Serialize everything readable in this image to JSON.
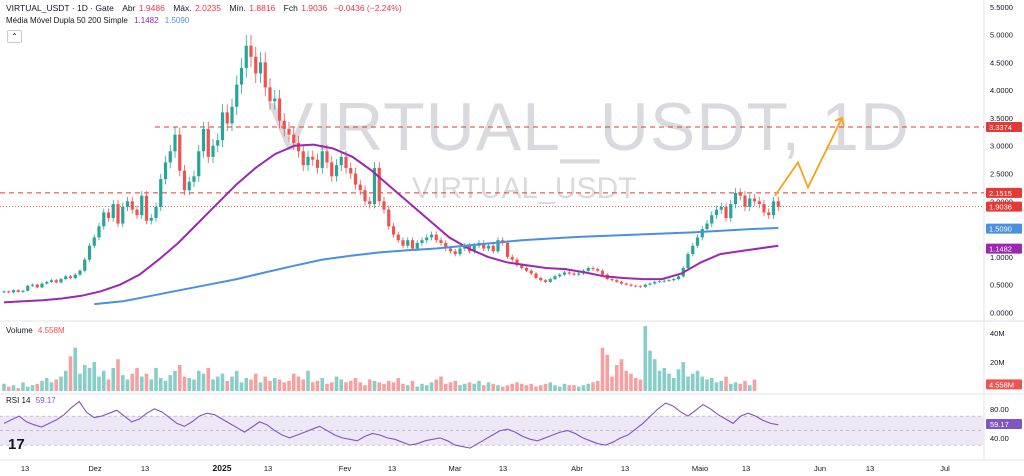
{
  "header": {
    "symbol": "VIRTUAL_USDT · 1D · Gate",
    "open_label": "Abr",
    "open_value": "1.9486",
    "high_label": "Máx.",
    "high_value": "2.0235",
    "low_label": "Mín.",
    "low_value": "1.8816",
    "close_label": "Fch",
    "close_value": "1.9036",
    "change": "−0.0436 (−2.24%)"
  },
  "indicator": {
    "name": "Média Móvel Dupla 50 200 Simple",
    "ma50": "1.1482",
    "ma200": "1.5090"
  },
  "toggle_icon": "chevron-up-icon",
  "watermark": {
    "big": "VIRTUAL_USDT, 1D",
    "small": "VIRTUAL_USDT"
  },
  "volume": {
    "label": "Volume",
    "value": "4.558M"
  },
  "rsi": {
    "label": "RSI 14",
    "value": "59.17"
  },
  "colors": {
    "up": "#26a69a",
    "down": "#ef5350",
    "ma50": "#9c27b0",
    "ma200": "#4a90e2",
    "projection": "#f7a21b",
    "level": "#e53935",
    "rsi_band": "#ede7f6"
  },
  "chart_data": [
    {
      "type": "candlestick",
      "title": "VIRTUAL_USDT · 1D · Gate",
      "x_ticks": [
        "13",
        "Dez",
        "13",
        "2025",
        "13",
        "Fev",
        "13",
        "Mar",
        "13",
        "Abr",
        "13",
        "Maio",
        "13",
        "Jun",
        "13",
        "Jul"
      ],
      "y_ticks": [
        "5.5000",
        "5.0000",
        "4.5000",
        "4.0000",
        "3.5000",
        "3.0000",
        "2.5000",
        "2.0000",
        "1.5000",
        "1.0000",
        "0.5000",
        "0.0000"
      ],
      "ylim": [
        -0.1,
        5.55
      ],
      "price_labels": [
        {
          "value": 3.3374,
          "text": "3.3374",
          "color": "#e53935"
        },
        {
          "value": 2.1515,
          "text": "2.1515",
          "color": "#e53935"
        },
        {
          "value": 1.9036,
          "text": "1.9036",
          "color": "#e53935"
        },
        {
          "value": 1.509,
          "text": "1.5090",
          "color": "#4a90e2"
        },
        {
          "value": 1.1482,
          "text": "1.1482",
          "color": "#9c27b0"
        }
      ],
      "horizontal_levels": [
        3.3374,
        2.1515
      ],
      "closes": [
        0.38,
        0.36,
        0.4,
        0.37,
        0.39,
        0.48,
        0.5,
        0.45,
        0.52,
        0.55,
        0.58,
        0.54,
        0.6,
        0.65,
        0.62,
        0.68,
        0.75,
        0.95,
        1.2,
        1.35,
        1.55,
        1.8,
        1.7,
        1.95,
        1.6,
        1.9,
        2.0,
        1.85,
        1.75,
        2.1,
        1.65,
        1.7,
        1.9,
        2.4,
        2.7,
        2.9,
        3.2,
        2.55,
        2.2,
        2.35,
        2.45,
        2.9,
        3.3,
        2.8,
        3.0,
        3.1,
        3.6,
        3.4,
        3.7,
        4.1,
        4.4,
        4.8,
        4.6,
        4.3,
        4.5,
        4.05,
        3.8,
        3.85,
        3.45,
        3.3,
        3.2,
        3.05,
        2.9,
        2.65,
        2.8,
        2.75,
        2.6,
        2.9,
        2.7,
        2.45,
        2.65,
        2.8,
        2.6,
        2.5,
        2.3,
        2.2,
        2.0,
        1.95,
        2.6,
        2.0,
        1.85,
        1.55,
        1.4,
        1.3,
        1.2,
        1.3,
        1.15,
        1.25,
        1.3,
        1.35,
        1.4,
        1.3,
        1.25,
        1.15,
        1.1,
        1.05,
        1.15,
        1.2,
        1.1,
        1.2,
        1.25,
        1.15,
        1.2,
        1.1,
        1.3,
        1.25,
        1.0,
        0.95,
        0.85,
        0.8,
        0.75,
        0.7,
        0.62,
        0.58,
        0.55,
        0.6,
        0.65,
        0.68,
        0.72,
        0.7,
        0.68,
        0.7,
        0.75,
        0.8,
        0.78,
        0.75,
        0.68,
        0.6,
        0.58,
        0.55,
        0.52,
        0.5,
        0.48,
        0.47,
        0.46,
        0.5,
        0.52,
        0.55,
        0.56,
        0.57,
        0.58,
        0.6,
        0.65,
        0.8,
        1.05,
        1.2,
        1.35,
        1.5,
        1.6,
        1.75,
        1.85,
        1.9,
        1.7,
        1.95,
        2.15,
        2.1,
        1.9,
        2.05,
        2.0,
        1.95,
        1.8,
        1.75,
        2.0,
        1.9
      ],
      "series": [
        {
          "name": "MA 50",
          "values": [
            0.18,
            0.2,
            0.22,
            0.25,
            0.3,
            0.38,
            0.5,
            0.68,
            0.95,
            1.25,
            1.6,
            1.95,
            2.3,
            2.6,
            2.85,
            3.0,
            3.02,
            2.95,
            2.8,
            2.55,
            2.25,
            1.95,
            1.65,
            1.35,
            1.15,
            1.0,
            0.9,
            0.85,
            0.8,
            0.78,
            0.72,
            0.65,
            0.62,
            0.6,
            0.6,
            0.7,
            0.9,
            1.05,
            1.1,
            1.15,
            1.2
          ]
        },
        {
          "name": "MA 200",
          "values": [
            0.15,
            0.2,
            0.3,
            0.4,
            0.5,
            0.6,
            0.72,
            0.84,
            0.95,
            1.02,
            1.08,
            1.12,
            1.15,
            1.2,
            1.25,
            1.3,
            1.33,
            1.36,
            1.38,
            1.4,
            1.42,
            1.44,
            1.47,
            1.5,
            1.52
          ]
        }
      ],
      "projection": [
        2.1,
        2.7,
        2.25,
        3.5
      ]
    },
    {
      "type": "bar",
      "title": "Volume",
      "y_ticks": [
        "40M",
        "20M"
      ],
      "ylim": [
        0,
        45
      ],
      "values": [
        5,
        3,
        4,
        2,
        6,
        3,
        4,
        5,
        7,
        9,
        6,
        8,
        10,
        14,
        24,
        30,
        12,
        18,
        16,
        20,
        10,
        14,
        8,
        16,
        22,
        11,
        8,
        12,
        16,
        10,
        12,
        8,
        16,
        9,
        7,
        11,
        14,
        18,
        10,
        9,
        8,
        14,
        12,
        16,
        8,
        10,
        12,
        7,
        10,
        14,
        6,
        9,
        8,
        12,
        6,
        10,
        7,
        9,
        8,
        6,
        7,
        12,
        10,
        8,
        14,
        6,
        7,
        9,
        5,
        6,
        10,
        8,
        6,
        7,
        9,
        6,
        4,
        8,
        7,
        6,
        5,
        7,
        6,
        9,
        5,
        4,
        7,
        3,
        5,
        4,
        6,
        8,
        10,
        5,
        6,
        7,
        4,
        5,
        6,
        5,
        7,
        4,
        6,
        5,
        4,
        3,
        4,
        5,
        6,
        5,
        4,
        5,
        3,
        4,
        5,
        6,
        4,
        3,
        5,
        4,
        4,
        3,
        4,
        5,
        6,
        7,
        30,
        25,
        10,
        18,
        22,
        14,
        12,
        9,
        8,
        45,
        28,
        22,
        14,
        16,
        12,
        9,
        15,
        20,
        10,
        12,
        14,
        10,
        8,
        9,
        6,
        7,
        10,
        5,
        6,
        5,
        7,
        4,
        8
      ]
    },
    {
      "type": "line",
      "title": "RSI 14",
      "y_ticks": [
        "80.00",
        "40.00"
      ],
      "ylim": [
        15,
        95
      ],
      "values": [
        60,
        65,
        70,
        62,
        58,
        55,
        60,
        65,
        72,
        82,
        90,
        75,
        68,
        70,
        74,
        78,
        70,
        62,
        66,
        74,
        80,
        76,
        68,
        60,
        56,
        62,
        70,
        74,
        72,
        66,
        60,
        54,
        48,
        55,
        62,
        58,
        50,
        44,
        40,
        44,
        48,
        52,
        56,
        50,
        44,
        40,
        38,
        36,
        42,
        46,
        44,
        40,
        38,
        34,
        30,
        32,
        36,
        38,
        40,
        36,
        30,
        28,
        26,
        32,
        38,
        44,
        50,
        52,
        48,
        42,
        38,
        36,
        40,
        44,
        48,
        50,
        46,
        40,
        36,
        32,
        30,
        34,
        40,
        44,
        52,
        60,
        70,
        80,
        88,
        84,
        76,
        70,
        78,
        86,
        80,
        72,
        66,
        60,
        70,
        74,
        70,
        64,
        60,
        58
      ]
    }
  ]
}
